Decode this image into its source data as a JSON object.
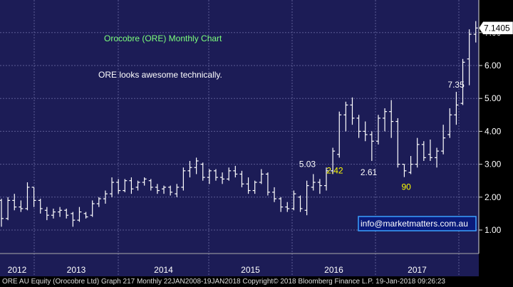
{
  "chart_data": {
    "type": "ohlc",
    "title": "Orocobre (ORE) Monthly Chart",
    "comment": "ORE looks awesome technically.",
    "email": "info@marketmatters.com.au",
    "last_price_label": "7.1405",
    "ylim": [
      0.3,
      7.85
    ],
    "y_ticks": [
      1.0,
      2.0,
      3.0,
      4.0,
      5.0,
      6.0,
      7.0
    ],
    "y_tick_labels": [
      "1.00",
      "2.00",
      "3.00",
      "4.00",
      "5.00",
      "6.00",
      "7.00"
    ],
    "x_year_labels": [
      "2012",
      "2013",
      "2014",
      "2015",
      "2016",
      "2017"
    ],
    "annotations": [
      {
        "text": "7.35",
        "color": "#ffffff",
        "bar": 70
      },
      {
        "text": "5.03",
        "color": "#ffffff",
        "bar": 48
      },
      {
        "text": "2.42",
        "color": "#ffff00",
        "bar": 52
      },
      {
        "text": "2.61",
        "color": "#ffffff",
        "bar": 57
      },
      {
        "text": "90",
        "color": "#ffff00",
        "bar": 62
      }
    ],
    "bars": [
      [
        1.9,
        1.95,
        1.1,
        1.35
      ],
      [
        1.35,
        2.0,
        1.3,
        1.9
      ],
      [
        1.9,
        2.1,
        1.6,
        1.7
      ],
      [
        1.7,
        1.9,
        1.55,
        1.65
      ],
      [
        1.65,
        2.45,
        1.6,
        2.3
      ],
      [
        2.3,
        2.3,
        1.7,
        1.9
      ],
      [
        1.9,
        1.95,
        1.5,
        1.65
      ],
      [
        1.6,
        1.7,
        1.3,
        1.45
      ],
      [
        1.45,
        1.65,
        1.35,
        1.55
      ],
      [
        1.55,
        1.7,
        1.4,
        1.6
      ],
      [
        1.6,
        1.65,
        1.35,
        1.45
      ],
      [
        1.5,
        1.55,
        1.1,
        1.3
      ],
      [
        1.3,
        1.7,
        1.25,
        1.55
      ],
      [
        1.5,
        1.55,
        1.35,
        1.4
      ],
      [
        1.45,
        1.9,
        1.4,
        1.8
      ],
      [
        1.8,
        2.0,
        1.7,
        1.95
      ],
      [
        1.95,
        2.2,
        1.8,
        2.1
      ],
      [
        2.1,
        2.6,
        2.0,
        2.45
      ],
      [
        2.45,
        2.55,
        2.1,
        2.2
      ],
      [
        2.2,
        2.55,
        2.15,
        2.5
      ],
      [
        2.5,
        2.6,
        2.1,
        2.25
      ],
      [
        2.3,
        2.5,
        2.2,
        2.45
      ],
      [
        2.45,
        2.6,
        2.35,
        2.55
      ],
      [
        2.5,
        2.55,
        2.2,
        2.3
      ],
      [
        2.3,
        2.4,
        2.1,
        2.2
      ],
      [
        2.25,
        2.35,
        2.1,
        2.3
      ],
      [
        2.3,
        2.35,
        2.05,
        2.15
      ],
      [
        2.1,
        2.4,
        2.0,
        2.3
      ],
      [
        2.3,
        2.9,
        2.2,
        2.8
      ],
      [
        2.8,
        3.1,
        2.6,
        2.9
      ],
      [
        2.9,
        3.2,
        2.7,
        3.1
      ],
      [
        3.0,
        3.05,
        2.5,
        2.6
      ],
      [
        2.6,
        2.85,
        2.4,
        2.8
      ],
      [
        2.8,
        2.85,
        2.5,
        2.6
      ],
      [
        2.6,
        2.75,
        2.4,
        2.55
      ],
      [
        2.55,
        2.9,
        2.5,
        2.8
      ],
      [
        2.8,
        2.95,
        2.6,
        2.7
      ],
      [
        2.7,
        2.8,
        2.3,
        2.4
      ],
      [
        2.4,
        2.6,
        2.1,
        2.2
      ],
      [
        2.2,
        2.5,
        2.1,
        2.45
      ],
      [
        2.45,
        2.85,
        2.4,
        2.7
      ],
      [
        2.7,
        2.75,
        2.05,
        2.15
      ],
      [
        2.15,
        2.3,
        1.85,
        1.95
      ],
      [
        1.95,
        2.0,
        1.55,
        1.7
      ],
      [
        1.7,
        1.85,
        1.55,
        1.65
      ],
      [
        1.65,
        2.2,
        1.6,
        2.1
      ],
      [
        2.0,
        2.05,
        1.55,
        1.65
      ],
      [
        1.6,
        2.5,
        1.45,
        2.35
      ],
      [
        2.3,
        2.7,
        2.2,
        2.45
      ],
      [
        2.45,
        2.55,
        2.1,
        2.35
      ],
      [
        2.35,
        2.9,
        2.2,
        2.8
      ],
      [
        2.8,
        3.5,
        2.7,
        3.4
      ],
      [
        3.3,
        4.6,
        3.2,
        4.5
      ],
      [
        4.5,
        4.9,
        4.0,
        4.8
      ],
      [
        4.8,
        5.03,
        4.2,
        4.4
      ],
      [
        4.4,
        4.5,
        3.8,
        4.0
      ],
      [
        4.0,
        4.3,
        3.7,
        3.9
      ],
      [
        3.9,
        4.0,
        3.1,
        3.7
      ],
      [
        3.7,
        4.5,
        3.6,
        4.4
      ],
      [
        4.4,
        4.7,
        4.0,
        4.6
      ],
      [
        4.6,
        4.95,
        3.8,
        4.3
      ],
      [
        4.3,
        4.4,
        2.9,
        3.0
      ],
      [
        3.0,
        3.0,
        2.61,
        2.8
      ],
      [
        2.75,
        3.25,
        2.7,
        3.0
      ],
      [
        3.0,
        3.8,
        2.9,
        3.6
      ],
      [
        3.6,
        3.7,
        3.1,
        3.2
      ],
      [
        3.3,
        3.75,
        3.1,
        3.2
      ],
      [
        3.2,
        3.5,
        2.9,
        3.4
      ],
      [
        3.4,
        4.2,
        3.3,
        3.8
      ],
      [
        3.9,
        4.7,
        3.8,
        4.5
      ],
      [
        4.5,
        5.2,
        4.2,
        4.8
      ],
      [
        4.85,
        6.2,
        4.8,
        6.1
      ],
      [
        6.2,
        7.1,
        5.4,
        6.95
      ],
      [
        6.95,
        7.35,
        6.7,
        7.14
      ]
    ]
  },
  "footer": {
    "text": "ORE AU Equity (Orocobre Ltd) Graph 217  Monthly 22JAN2008-19JAN2018 Copyright© 2018 Bloomberg Finance L.P.   19-Jan-2018 09:26:23"
  },
  "colors": {
    "background": "#1c1c56",
    "grid": "#5b5b94",
    "bar": "#ffffff",
    "title": "#7cff7c",
    "highlight": "#ffff00",
    "email_border": "#3aa0ff"
  }
}
